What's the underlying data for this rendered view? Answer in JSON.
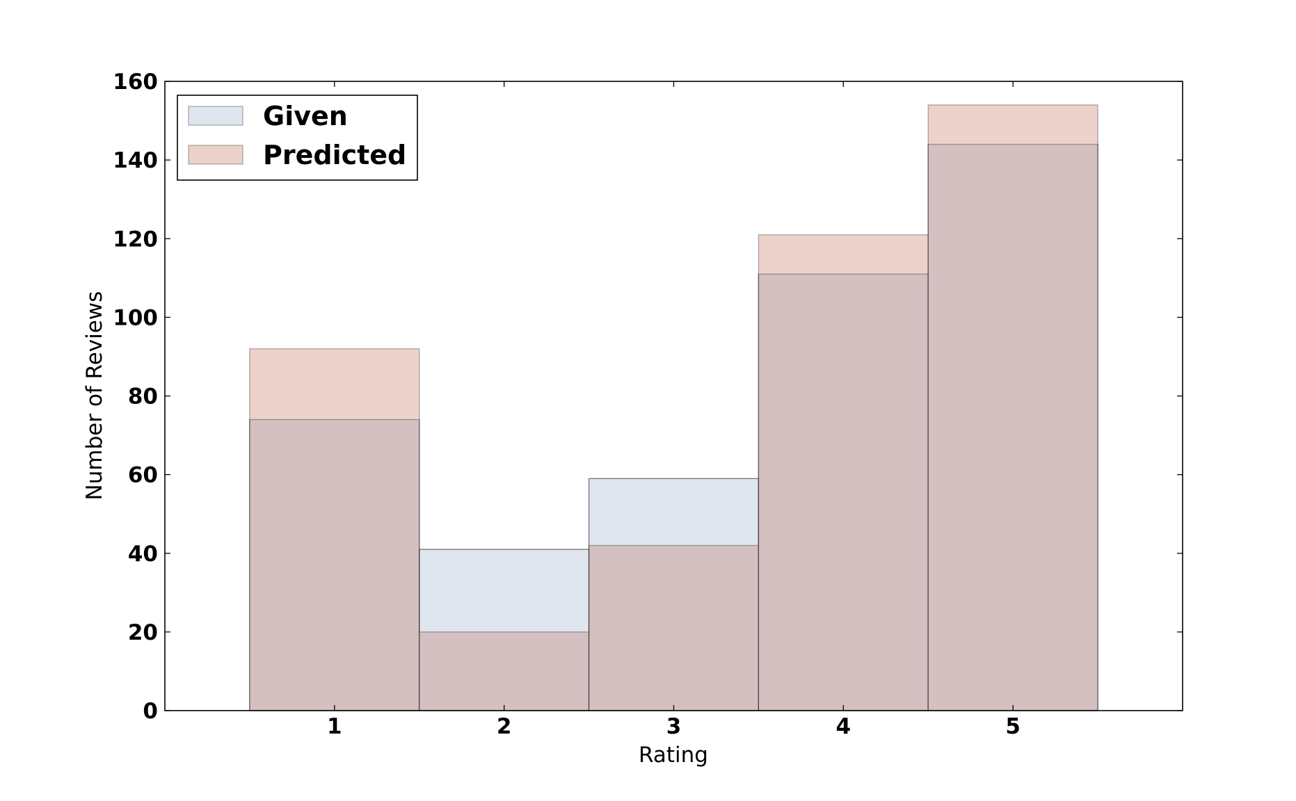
{
  "chart_data": {
    "type": "bar",
    "title": "",
    "xlabel": "Rating",
    "ylabel": "Number of Reviews",
    "xlim": [
      0,
      6
    ],
    "ylim": [
      0,
      160
    ],
    "x_ticks": [
      "1",
      "2",
      "3",
      "4",
      "5"
    ],
    "y_ticks": [
      "0",
      "20",
      "40",
      "60",
      "80",
      "100",
      "120",
      "140",
      "160"
    ],
    "categories": [
      1,
      2,
      3,
      4,
      5
    ],
    "grid": false,
    "legend_position": "top-left",
    "series": [
      {
        "name": "Given",
        "values": [
          74,
          41,
          59,
          111,
          144
        ],
        "color": "#e0e6f0"
      },
      {
        "name": "Predicted",
        "values": [
          92,
          20,
          42,
          121,
          154
        ],
        "color": "#c8766b"
      }
    ],
    "overlap_color": "#d4bfc1"
  }
}
